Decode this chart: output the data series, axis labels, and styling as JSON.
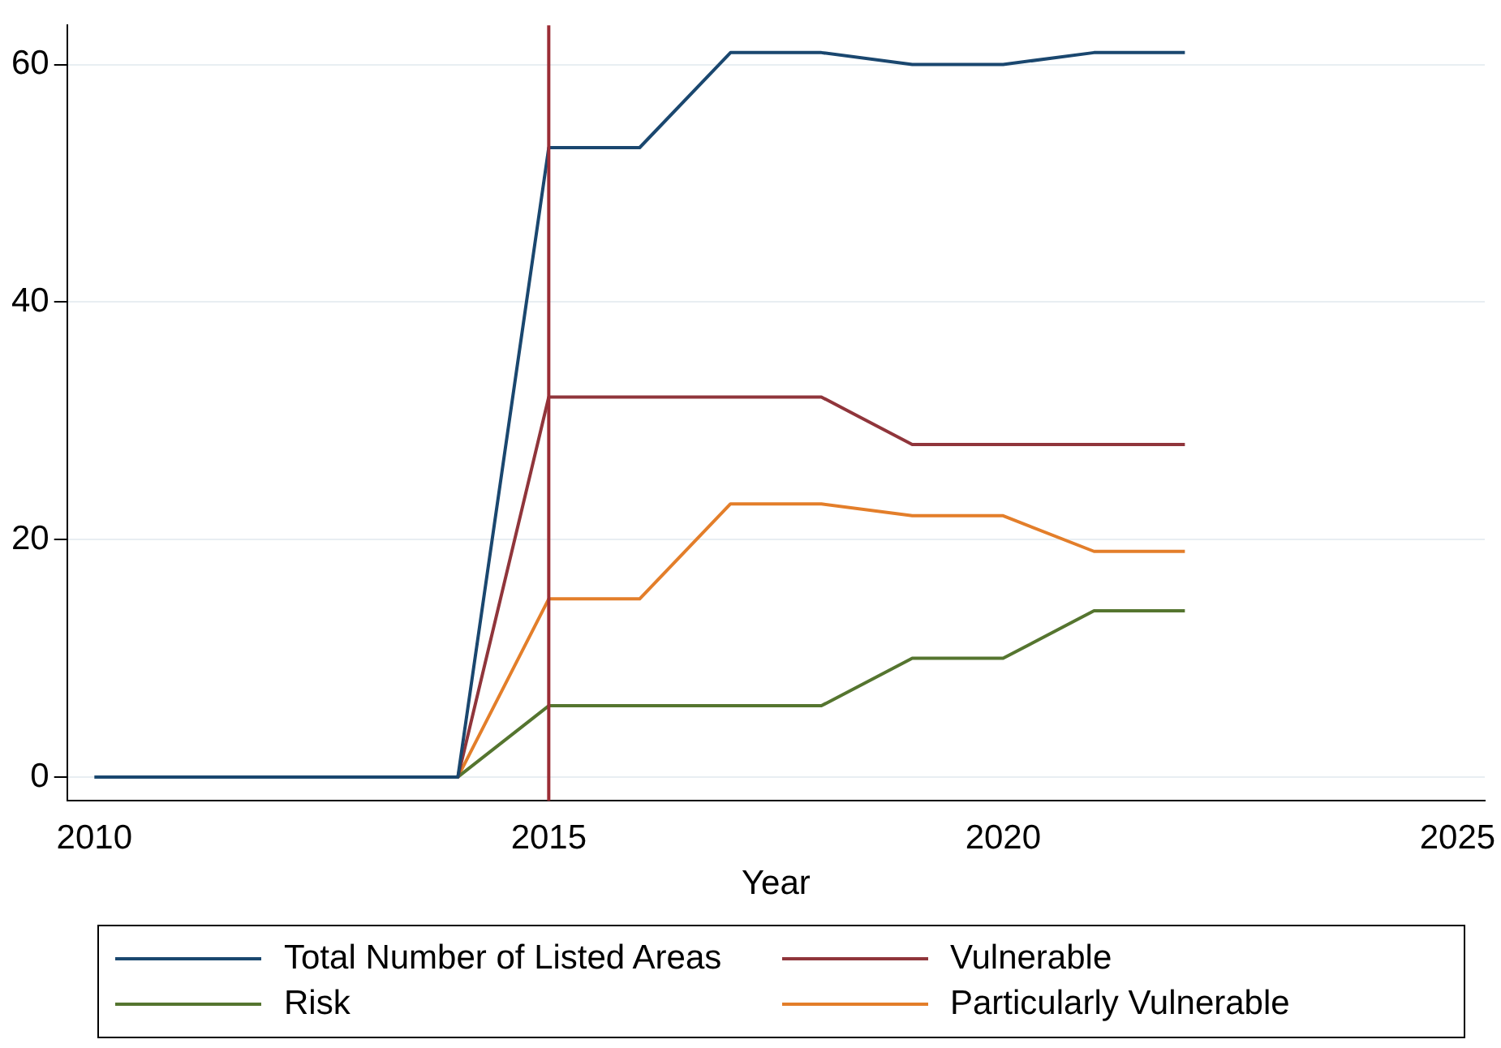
{
  "chart_data": {
    "type": "line",
    "xlabel": "Year",
    "x": [
      2010,
      2011,
      2012,
      2013,
      2014,
      2015,
      2016,
      2017,
      2018,
      2019,
      2020,
      2021,
      2022
    ],
    "series": [
      {
        "name": "Total Number of Listed Areas",
        "color": "#1a476f",
        "values": [
          0,
          0,
          0,
          0,
          0,
          53,
          53,
          61,
          61,
          60,
          60,
          61,
          61
        ]
      },
      {
        "name": "Vulnerable",
        "color": "#90353b",
        "values": [
          null,
          null,
          null,
          0,
          0,
          32,
          32,
          32,
          32,
          28,
          28,
          28,
          28
        ]
      },
      {
        "name": "Risk",
        "color": "#55752f",
        "values": [
          null,
          null,
          null,
          0,
          0,
          6,
          6,
          6,
          6,
          10,
          10,
          14,
          14
        ]
      },
      {
        "name": "Particularly Vulnerable",
        "color": "#e37e2a",
        "values": [
          null,
          null,
          null,
          0,
          0,
          15,
          15,
          23,
          23,
          22,
          22,
          19,
          19
        ]
      }
    ],
    "xlim": [
      2009.7,
      2025.3
    ],
    "xticks": [
      2010,
      2015,
      2020,
      2025
    ],
    "ylim": [
      -2,
      63.3
    ],
    "yticks": [
      0,
      20,
      40,
      60
    ],
    "ref_lines": [
      {
        "axis": "x",
        "value": 2015,
        "color": "#9b2d35"
      }
    ],
    "grid": "y",
    "legend": "bottom",
    "marker": "none",
    "line_style": "solid"
  }
}
